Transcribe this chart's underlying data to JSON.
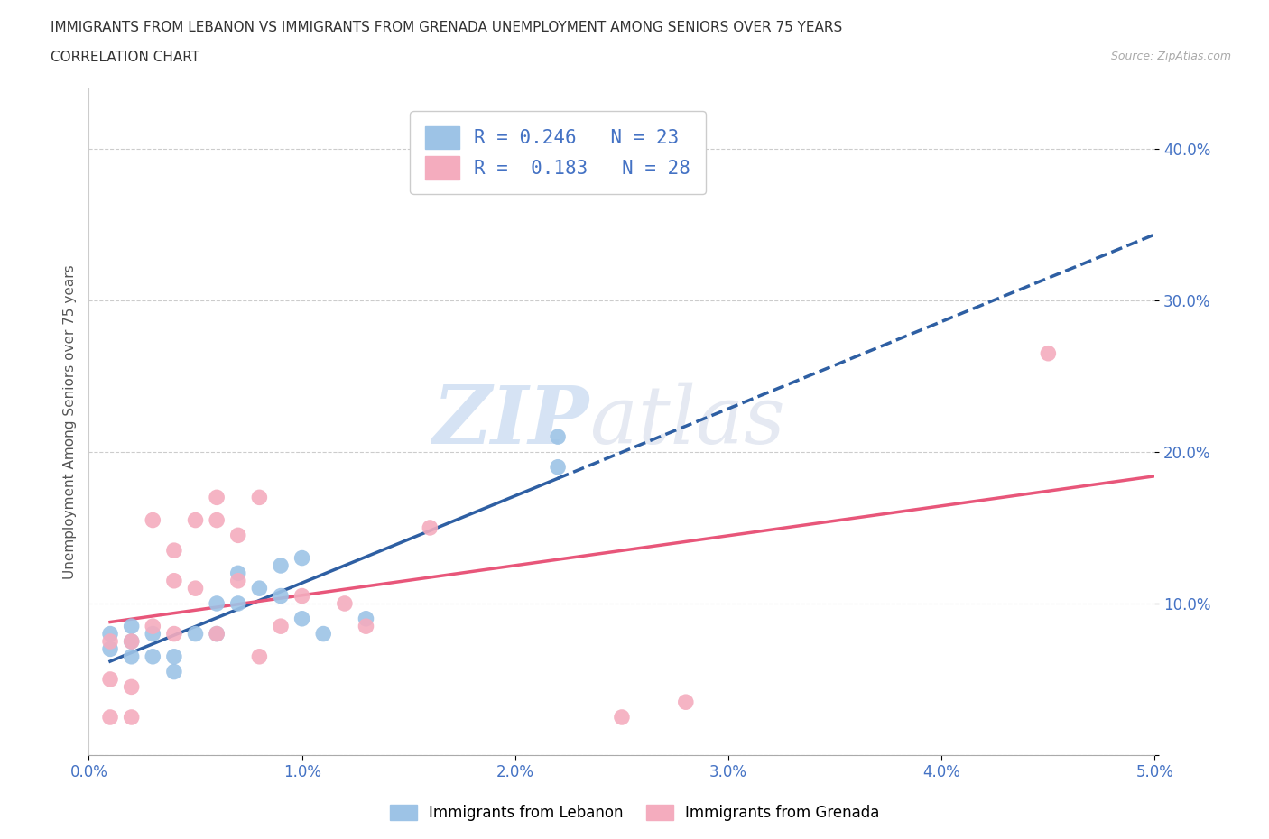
{
  "title_line1": "IMMIGRANTS FROM LEBANON VS IMMIGRANTS FROM GRENADA UNEMPLOYMENT AMONG SENIORS OVER 75 YEARS",
  "title_line2": "CORRELATION CHART",
  "source": "Source: ZipAtlas.com",
  "ylabel": "Unemployment Among Seniors over 75 years",
  "xlim": [
    0.0,
    0.05
  ],
  "ylim": [
    0.0,
    0.44
  ],
  "xticks": [
    0.0,
    0.01,
    0.02,
    0.03,
    0.04,
    0.05
  ],
  "yticks": [
    0.0,
    0.1,
    0.2,
    0.3,
    0.4
  ],
  "ytick_labels": [
    "",
    "10.0%",
    "20.0%",
    "30.0%",
    "40.0%"
  ],
  "xtick_labels": [
    "0.0%",
    "1.0%",
    "2.0%",
    "3.0%",
    "4.0%",
    "5.0%"
  ],
  "lebanon_color": "#9dc3e6",
  "grenada_color": "#f4acbe",
  "lebanon_line_color": "#2e5fa3",
  "grenada_line_color": "#e8567a",
  "R_lebanon": 0.246,
  "N_lebanon": 23,
  "R_grenada": 0.183,
  "N_grenada": 28,
  "watermark_zip": "ZIP",
  "watermark_atlas": "atlas",
  "lebanon_x": [
    0.001,
    0.001,
    0.002,
    0.002,
    0.002,
    0.003,
    0.003,
    0.004,
    0.004,
    0.005,
    0.006,
    0.006,
    0.007,
    0.007,
    0.008,
    0.009,
    0.009,
    0.01,
    0.01,
    0.011,
    0.013,
    0.022,
    0.022
  ],
  "lebanon_y": [
    0.07,
    0.08,
    0.085,
    0.065,
    0.075,
    0.08,
    0.065,
    0.055,
    0.065,
    0.08,
    0.1,
    0.08,
    0.12,
    0.1,
    0.11,
    0.125,
    0.105,
    0.13,
    0.09,
    0.08,
    0.09,
    0.19,
    0.21
  ],
  "grenada_x": [
    0.001,
    0.001,
    0.001,
    0.002,
    0.002,
    0.002,
    0.003,
    0.003,
    0.004,
    0.004,
    0.004,
    0.005,
    0.005,
    0.006,
    0.006,
    0.006,
    0.007,
    0.007,
    0.008,
    0.008,
    0.009,
    0.01,
    0.012,
    0.013,
    0.016,
    0.025,
    0.028,
    0.045
  ],
  "grenada_y": [
    0.05,
    0.025,
    0.075,
    0.075,
    0.025,
    0.045,
    0.155,
    0.085,
    0.135,
    0.115,
    0.08,
    0.155,
    0.11,
    0.155,
    0.17,
    0.08,
    0.145,
    0.115,
    0.065,
    0.17,
    0.085,
    0.105,
    0.1,
    0.085,
    0.15,
    0.025,
    0.035,
    0.265
  ],
  "background_color": "#ffffff",
  "grid_color": "#cccccc",
  "tick_color": "#4472c4",
  "legend_label_color": "#4472c4",
  "legend_bottom_labels": [
    "Immigrants from Lebanon",
    "Immigrants from Grenada"
  ]
}
